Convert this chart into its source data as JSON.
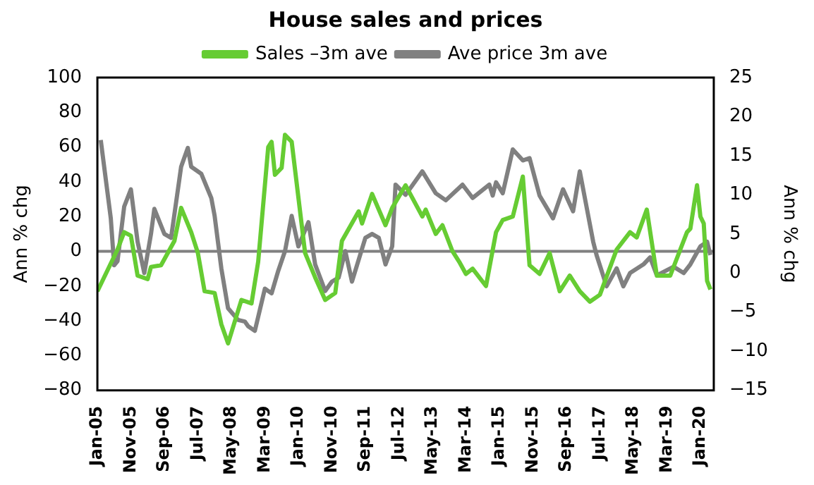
{
  "chart_data": {
    "type": "line",
    "title": "House sales and prices",
    "ylabel": "Ann % chg",
    "y2label": "Ann % chg",
    "xlim": [
      "2005-01",
      "2020-05"
    ],
    "xticks": [
      {
        "value": "2005-01",
        "label": "Jan-05"
      },
      {
        "value": "2005-11",
        "label": "Nov-05"
      },
      {
        "value": "2006-09",
        "label": "Sep-06"
      },
      {
        "value": "2007-07",
        "label": "Jul-07"
      },
      {
        "value": "2008-05",
        "label": "May-08"
      },
      {
        "value": "2009-03",
        "label": "Mar-09"
      },
      {
        "value": "2010-01",
        "label": "Jan-10"
      },
      {
        "value": "2010-11",
        "label": "Nov-10"
      },
      {
        "value": "2011-09",
        "label": "Sep-11"
      },
      {
        "value": "2012-07",
        "label": "Jul-12"
      },
      {
        "value": "2013-05",
        "label": "May-13"
      },
      {
        "value": "2014-03",
        "label": "Mar-14"
      },
      {
        "value": "2015-01",
        "label": "Jan-15"
      },
      {
        "value": "2015-11",
        "label": "Nov-15"
      },
      {
        "value": "2016-09",
        "label": "Sep-16"
      },
      {
        "value": "2017-07",
        "label": "Jul-17"
      },
      {
        "value": "2018-05",
        "label": "May-18"
      },
      {
        "value": "2019-03",
        "label": "Mar-19"
      },
      {
        "value": "2020-01",
        "label": "Jan-20"
      }
    ],
    "ylim": [
      -80,
      100
    ],
    "yticks": [
      -80,
      -60,
      -40,
      -20,
      0,
      20,
      40,
      60,
      80,
      100
    ],
    "y2lim": [
      -15,
      25
    ],
    "y2ticks": [
      -15,
      -10,
      -5,
      0,
      5,
      10,
      15,
      20,
      25
    ],
    "grid": false,
    "legend": "top",
    "marker": "none",
    "ref_lines": [
      {
        "axis": "y",
        "value": 0,
        "color": "#808080"
      }
    ],
    "series": [
      {
        "name": "Sales –3m ave",
        "color": "#66cc33",
        "x": [
          "2005-01",
          "2005-07",
          "2005-09",
          "2005-11",
          "2006-01",
          "2006-04",
          "2006-05",
          "2006-08",
          "2006-12",
          "2007-02",
          "2007-05",
          "2007-07",
          "2007-09",
          "2007-12",
          "2008-02",
          "2008-04",
          "2008-08",
          "2008-11",
          "2009-01",
          "2009-04",
          "2009-05",
          "2009-06",
          "2009-08",
          "2009-09",
          "2009-11",
          "2010-01",
          "2010-03",
          "2010-06",
          "2010-09",
          "2010-12",
          "2011-02",
          "2011-07",
          "2011-08",
          "2011-11",
          "2012-03",
          "2012-05",
          "2012-09",
          "2013-02",
          "2013-03",
          "2013-06",
          "2013-08",
          "2013-11",
          "2014-01",
          "2014-03",
          "2014-05",
          "2014-09",
          "2014-12",
          "2015-02",
          "2015-05",
          "2015-08",
          "2015-10",
          "2016-01",
          "2016-04",
          "2016-07",
          "2016-10",
          "2017-01",
          "2017-04",
          "2017-07",
          "2017-12",
          "2018-04",
          "2018-06",
          "2018-09",
          "2018-12",
          "2019-04",
          "2019-07",
          "2019-09",
          "2019-10",
          "2019-12",
          "2020-01",
          "2020-02",
          "2020-03",
          "2020-04"
        ],
        "values": [
          -23,
          1,
          11,
          9,
          -14,
          -16,
          -9,
          -8,
          6,
          25,
          11,
          -1,
          -23,
          -24,
          -42,
          -53,
          -28,
          -30,
          -6,
          60,
          63,
          44,
          48,
          67,
          63,
          31,
          -1,
          -15,
          -28,
          -24,
          6,
          23,
          16,
          33,
          15,
          25,
          38,
          20,
          24,
          10,
          15,
          0,
          -6,
          -13,
          -10,
          -20,
          11,
          18,
          20,
          43,
          -8,
          -13,
          -1,
          -23,
          -14,
          -23,
          -29,
          -25,
          1,
          11,
          8,
          24,
          -14,
          -14,
          1,
          11,
          13,
          38,
          20,
          16,
          -17,
          -22
        ]
      },
      {
        "name": "Ave price 3m ave",
        "color": "#808080",
        "axis": "y2",
        "x": [
          "2005-02",
          "2005-05",
          "2005-06",
          "2005-07",
          "2005-09",
          "2005-11",
          "2006-01",
          "2006-03",
          "2006-05",
          "2006-06",
          "2006-09",
          "2006-11",
          "2007-02",
          "2007-04",
          "2007-05",
          "2007-08",
          "2007-11",
          "2007-12",
          "2008-02",
          "2008-04",
          "2008-07",
          "2008-09",
          "2008-10",
          "2008-12",
          "2009-03",
          "2009-05",
          "2009-07",
          "2009-09",
          "2009-11",
          "2010-01",
          "2010-04",
          "2010-06",
          "2010-09",
          "2010-11",
          "2011-01",
          "2011-03",
          "2011-05",
          "2011-09",
          "2011-11",
          "2012-01",
          "2012-03",
          "2012-05",
          "2012-06",
          "2012-09",
          "2013-02",
          "2013-06",
          "2013-09",
          "2014-02",
          "2014-05",
          "2014-10",
          "2014-11",
          "2014-12",
          "2015-02",
          "2015-05",
          "2015-08",
          "2015-10",
          "2016-01",
          "2016-05",
          "2016-08",
          "2016-11",
          "2017-01",
          "2017-03",
          "2017-05",
          "2017-06",
          "2017-09",
          "2017-12",
          "2018-02",
          "2018-04",
          "2018-08",
          "2018-10",
          "2018-12",
          "2019-05",
          "2019-08",
          "2019-10",
          "2020-01",
          "2020-03",
          "2020-04"
        ],
        "values": [
          17,
          7,
          1,
          1.5,
          8.5,
          10.7,
          4,
          0,
          5,
          8.2,
          5,
          4.5,
          13.6,
          16,
          13.6,
          12.7,
          9.6,
          7.3,
          0.6,
          -4.5,
          -6,
          -6.2,
          -6.8,
          -7.4,
          -2,
          -2.6,
          0.3,
          2.8,
          7.3,
          3.4,
          6.5,
          1.1,
          -2.3,
          -1.1,
          -0.6,
          2.8,
          -1.1,
          4.5,
          5,
          4.5,
          1.1,
          3.4,
          11.3,
          10,
          13,
          10.2,
          9.3,
          11.3,
          9.6,
          11.3,
          9.9,
          11.6,
          10.2,
          15.8,
          14.4,
          14.7,
          9.9,
          7,
          10.7,
          7.9,
          13,
          8.5,
          4,
          2.3,
          -1.7,
          0.6,
          -1.7,
          0,
          1.1,
          2,
          -0.3,
          0.8,
          0,
          1.1,
          3.4,
          4,
          2.3
        ]
      }
    ]
  }
}
